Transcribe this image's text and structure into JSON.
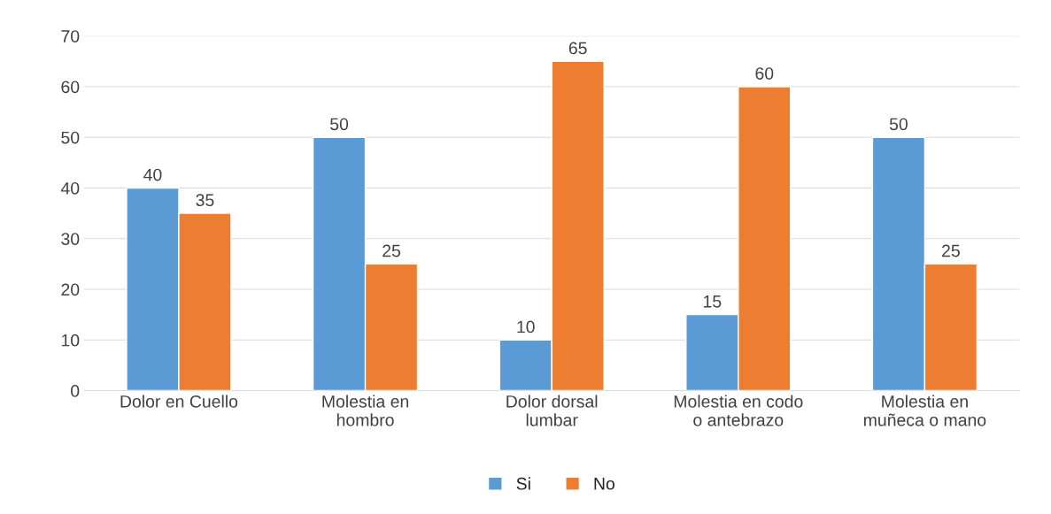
{
  "chart_data": {
    "type": "bar",
    "categories": [
      "Dolor en Cuello",
      "Molestia en\nhombro",
      "Dolor dorsal\nlumbar",
      "Molestia en codo\no antebrazo",
      "Molestia en\nmuñeca o mano"
    ],
    "series": [
      {
        "name": "Si",
        "color": "#5b9bd5",
        "values": [
          40,
          50,
          10,
          15,
          50
        ]
      },
      {
        "name": "No",
        "color": "#ed7d31",
        "values": [
          35,
          25,
          65,
          60,
          25
        ]
      }
    ],
    "ylim": [
      0,
      70
    ],
    "yticks": [
      0,
      10,
      20,
      30,
      40,
      50,
      60,
      70
    ],
    "grid": "y",
    "legend": "bottom",
    "data_labels": true
  }
}
